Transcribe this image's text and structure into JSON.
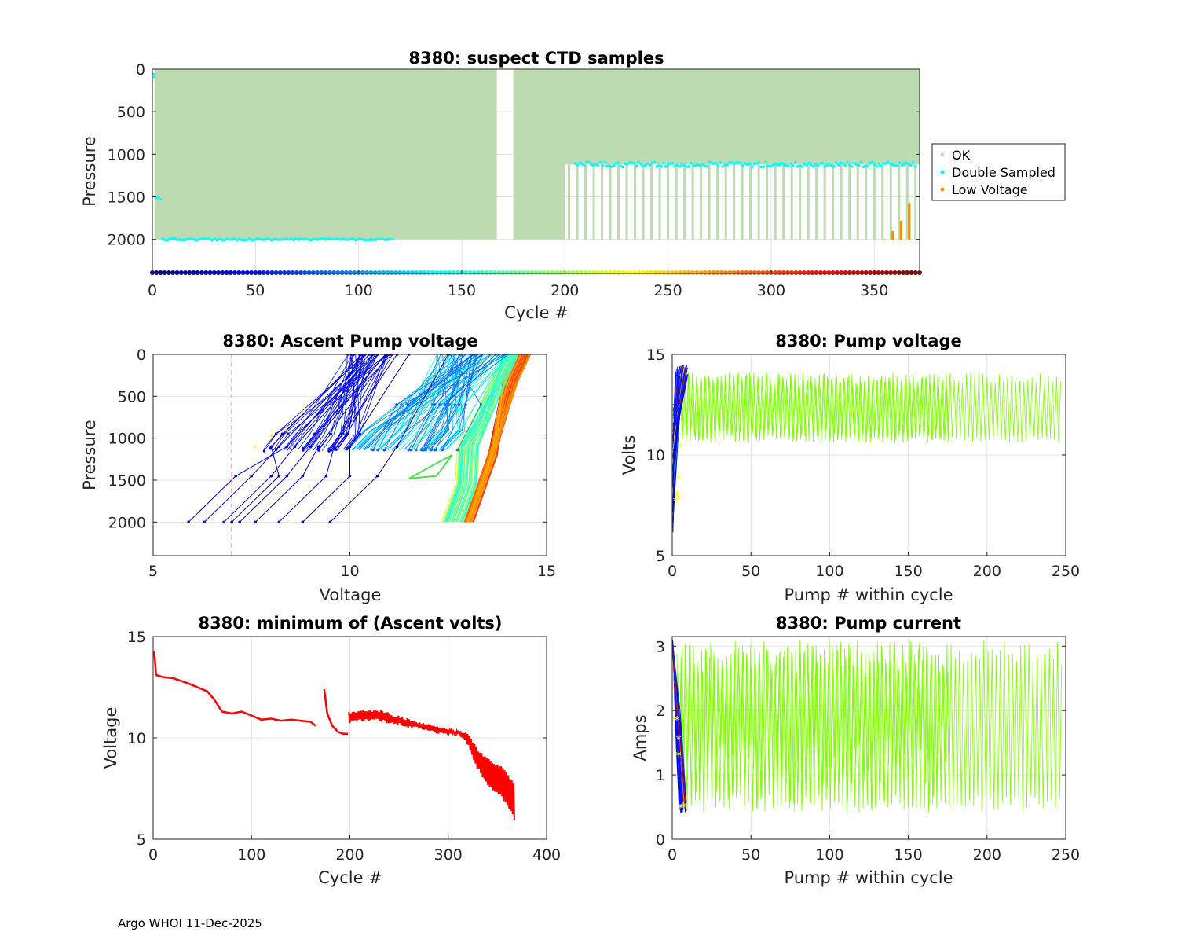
{
  "footer": "Argo WHOI 11-Dec-2025",
  "colors": {
    "ok": "#bddbb1",
    "double": "#00ffff",
    "lowv": "#ff8c00",
    "red": "#ff0000",
    "green": "#7fff00",
    "grid": "#e3e3e3",
    "vline": "#c02080",
    "marker": "#ffff00"
  },
  "chart_data": [
    {
      "id": "ctd",
      "type": "scatter",
      "title": "8380: suspect CTD samples",
      "xlabel": "Cycle #",
      "ylabel": "Pressure",
      "xlim": [
        0,
        372
      ],
      "ylim": [
        0,
        2400
      ],
      "y_reversed": true,
      "xticks": [
        0,
        50,
        100,
        150,
        200,
        250,
        300,
        350
      ],
      "yticks": [
        0,
        500,
        1000,
        1500,
        2000
      ],
      "legend": [
        "OK",
        "Double Sampled",
        "Low Voltage"
      ],
      "legend_position": "right",
      "colorbar": "jet",
      "ok_gaps": [
        [
          167,
          175
        ]
      ],
      "deep_profiles": {
        "start": 1,
        "end": 200,
        "max_pressure": 2000
      },
      "alternating_from": 202,
      "alternating_period": 4,
      "shallow_profile_pressure": 1120,
      "double_sampled_deep": {
        "start": 5,
        "end": 117,
        "pressure": 2000
      },
      "double_sampled_shallow": {
        "start": 205,
        "end": 371,
        "pressure": 1120
      },
      "low_voltage": [
        {
          "cycle": 355,
          "pressure": 2000
        },
        {
          "cycle": 359,
          "pressure": 1900
        },
        {
          "cycle": 363,
          "pressure": 1780
        },
        {
          "cycle": 367,
          "pressure": 1570
        }
      ]
    },
    {
      "id": "ascent",
      "type": "line",
      "title": "8380: Ascent Pump voltage",
      "xlabel": "Voltage",
      "ylabel": "Pressure",
      "xlim": [
        5,
        15
      ],
      "ylim": [
        0,
        2400
      ],
      "y_reversed": true,
      "xticks": [
        5,
        10,
        15
      ],
      "yticks": [
        0,
        500,
        1000,
        1500,
        2000
      ],
      "cutoff_voltage": 7,
      "series_description": "one line per cycle, colored by cycle number",
      "clusters": [
        {
          "label": "early cycles",
          "v_deep": [
            13.0,
            13.1
          ],
          "v_surface": [
            14.2,
            14.6
          ]
        },
        {
          "label": "mid cycles",
          "v_deep": [
            12.3,
            12.9
          ],
          "v_surface": [
            13.9,
            14.3
          ]
        },
        {
          "label": "shallow profiles",
          "v_1100": [
            9.5,
            12.5
          ],
          "v_surface": [
            11.5,
            14.2
          ]
        },
        {
          "label": "late cycles",
          "v_deep": [
            5.9,
            9.6
          ],
          "v_surface": [
            8.2,
            11.0
          ]
        }
      ]
    },
    {
      "id": "pumpv",
      "type": "line",
      "title": "8380: Pump voltage",
      "xlabel": "Pump # within cycle",
      "ylabel": "Volts",
      "xlim": [
        0,
        250
      ],
      "ylim": [
        5,
        15
      ],
      "xticks": [
        0,
        50,
        100,
        150,
        200,
        250
      ],
      "yticks": [
        5,
        10,
        15
      ],
      "green_oscillation": {
        "from": 5,
        "to": 248,
        "min": 10.6,
        "max": 14.1,
        "dense_until": 177,
        "mid_min": 11.3,
        "mid_max": 13.3
      },
      "initial_drop": {
        "v_start": [
          14.5,
          5.9
        ],
        "pump_end": 8
      },
      "yellow_markers": [
        [
          2,
          7.7
        ],
        [
          3,
          8.0
        ],
        [
          4,
          8.8
        ],
        [
          5,
          10.4
        ],
        [
          4,
          7.8
        ]
      ]
    },
    {
      "id": "minv",
      "type": "line",
      "title": "8380: minimum of (Ascent volts)",
      "xlabel": "Cycle #",
      "ylabel": "Voltage",
      "xlim": [
        0,
        400
      ],
      "ylim": [
        5,
        15
      ],
      "xticks": [
        0,
        100,
        200,
        300,
        400
      ],
      "yticks": [
        5,
        10,
        15
      ],
      "segments": [
        {
          "cycles": [
            1,
            165
          ],
          "points": [
            [
              1,
              14.3
            ],
            [
              3,
              13.1
            ],
            [
              10,
              13.0
            ],
            [
              20,
              12.95
            ],
            [
              35,
              12.7
            ],
            [
              45,
              12.5
            ],
            [
              55,
              12.3
            ],
            [
              62,
              11.9
            ],
            [
              70,
              11.3
            ],
            [
              80,
              11.2
            ],
            [
              90,
              11.3
            ],
            [
              100,
              11.1
            ],
            [
              110,
              10.9
            ],
            [
              120,
              10.95
            ],
            [
              130,
              10.85
            ],
            [
              140,
              10.9
            ],
            [
              150,
              10.85
            ],
            [
              160,
              10.8
            ],
            [
              165,
              10.6
            ]
          ]
        },
        {
          "cycles": [
            174,
            198
          ],
          "points": [
            [
              174,
              12.4
            ],
            [
              177,
              11.2
            ],
            [
              182,
              10.6
            ],
            [
              188,
              10.3
            ],
            [
              193,
              10.2
            ],
            [
              198,
              10.2
            ]
          ]
        },
        {
          "cycles": [
            199,
            368
          ],
          "band": [
            [
              199,
              10.7,
              11.3
            ],
            [
              210,
              10.8,
              11.4
            ],
            [
              230,
              10.8,
              11.4
            ],
            [
              250,
              10.6,
              11.1
            ],
            [
              270,
              10.4,
              10.8
            ],
            [
              290,
              10.2,
              10.6
            ],
            [
              310,
              10.1,
              10.4
            ],
            [
              320,
              9.6,
              10.3
            ],
            [
              328,
              8.6,
              9.6
            ],
            [
              340,
              7.6,
              9.0
            ],
            [
              355,
              7.0,
              8.6
            ],
            [
              368,
              5.9,
              7.8
            ]
          ]
        }
      ]
    },
    {
      "id": "pumpi",
      "type": "line",
      "title": "8380: Pump current",
      "xlabel": "Pump # within cycle",
      "ylabel": "Amps",
      "xlim": [
        0,
        250
      ],
      "ylim": [
        0,
        3.15
      ],
      "xticks": [
        0,
        50,
        100,
        150,
        200,
        250
      ],
      "yticks": [
        0,
        1,
        2,
        3
      ],
      "green_oscillation": {
        "from": 3,
        "to": 248,
        "min": 0.42,
        "max": 3.1,
        "dense_until": 177,
        "mid_min": 1.5,
        "mid_max": 2.5
      },
      "initial_drop": {
        "i_start": 3.1,
        "i_end": 0.4,
        "pump_end": 9
      },
      "yellow_markers": [
        [
          1,
          1.85
        ],
        [
          3,
          1.85
        ],
        [
          4,
          1.55
        ],
        [
          4,
          1.3
        ],
        [
          7,
          0.5
        ],
        [
          5,
          0.48
        ]
      ]
    }
  ]
}
